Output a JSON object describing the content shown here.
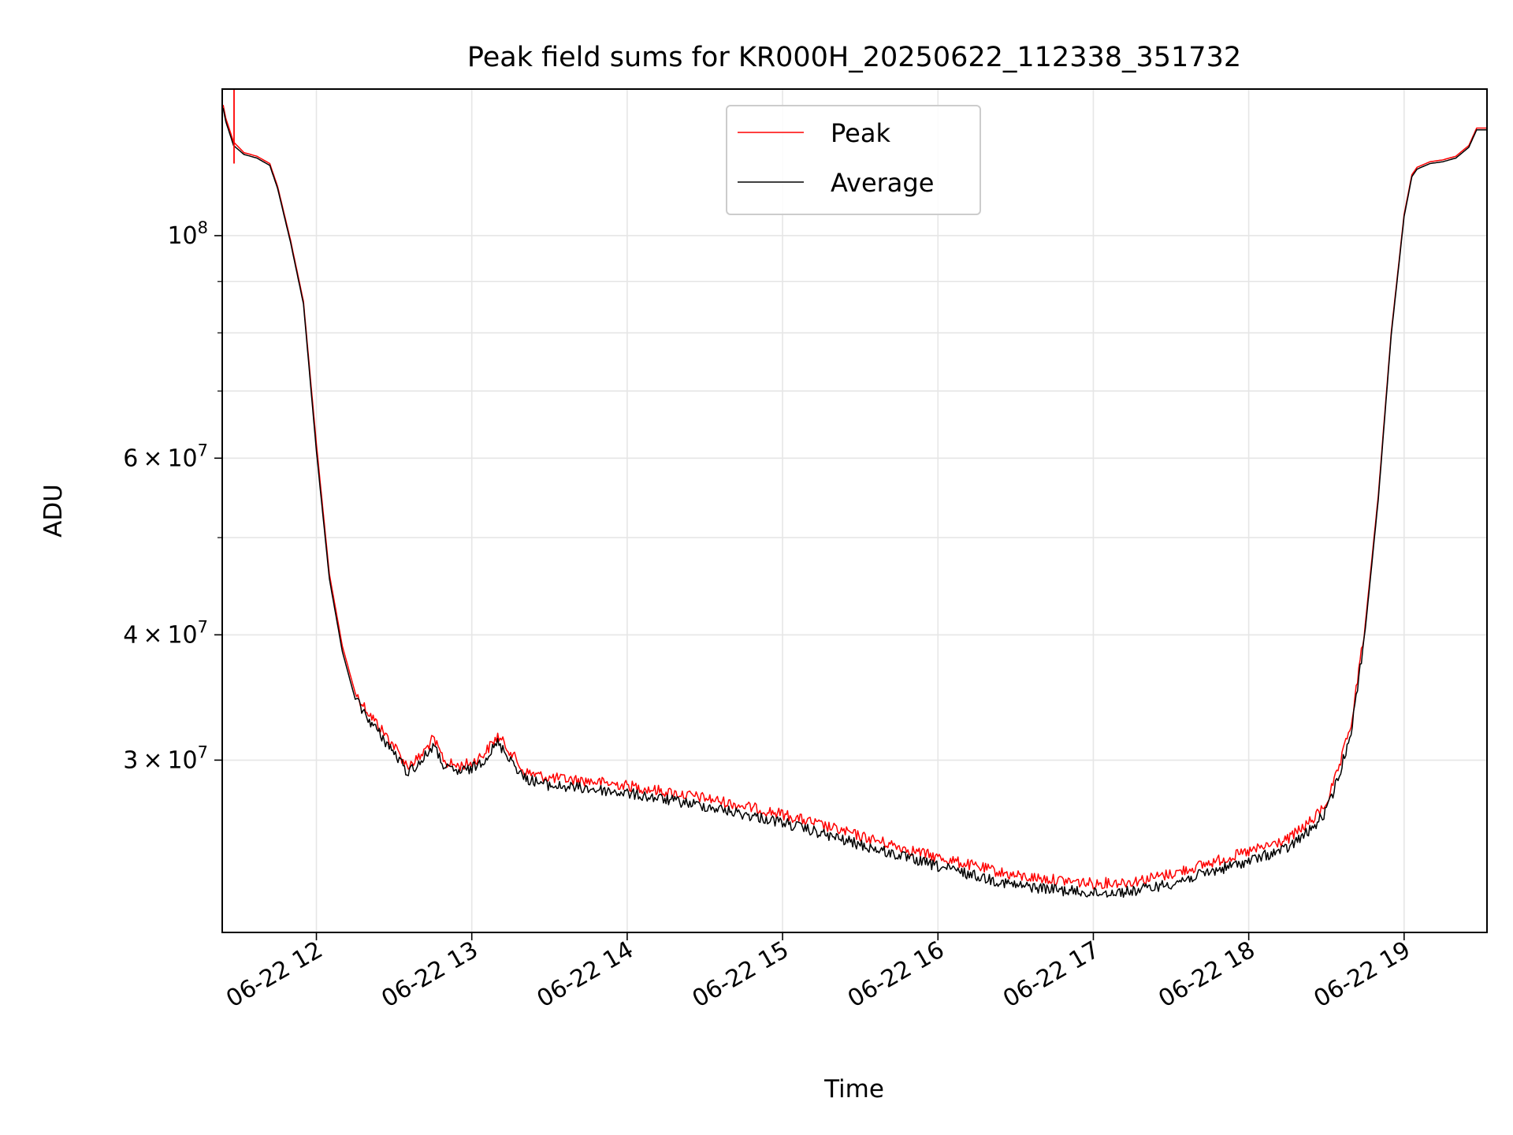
{
  "chart_data": {
    "type": "line",
    "title": "Peak field sums for KR000H_20250622_112338_351732",
    "xlabel": "Time",
    "ylabel": "ADU",
    "y_scale": "log",
    "grid": true,
    "legend_position": "top-center",
    "xlim": [
      "2025-06-22 11:23:38",
      "2025-06-22 19:32"
    ],
    "ylim": [
      20200000,
      140000000
    ],
    "x_ticks": [
      {
        "value": "2025-06-22 12:00",
        "label": "06-22 12"
      },
      {
        "value": "2025-06-22 13:00",
        "label": "06-22 13"
      },
      {
        "value": "2025-06-22 14:00",
        "label": "06-22 14"
      },
      {
        "value": "2025-06-22 15:00",
        "label": "06-22 15"
      },
      {
        "value": "2025-06-22 16:00",
        "label": "06-22 16"
      },
      {
        "value": "2025-06-22 17:00",
        "label": "06-22 17"
      },
      {
        "value": "2025-06-22 18:00",
        "label": "06-22 18"
      },
      {
        "value": "2025-06-22 19:00",
        "label": "06-22 19"
      }
    ],
    "y_major_ticks": [
      {
        "value": 30000000,
        "base": "3",
        "exp": "7"
      },
      {
        "value": 40000000,
        "base": "4",
        "exp": "7"
      },
      {
        "value": 60000000,
        "base": "6",
        "exp": "7"
      },
      {
        "value": 100000000,
        "base": "10",
        "exp": "8"
      }
    ],
    "y_minor_ticks": [
      20000000,
      50000000,
      70000000,
      80000000,
      90000000
    ],
    "series": [
      {
        "name": "Peak",
        "color": "#ff0000",
        "x": [
          "2025-06-22 11:24",
          "2025-06-22 11:25",
          "2025-06-22 11:28",
          "2025-06-22 11:32",
          "2025-06-22 11:37",
          "2025-06-22 11:42",
          "2025-06-22 11:45",
          "2025-06-22 11:50",
          "2025-06-22 11:55",
          "2025-06-22 12:00",
          "2025-06-22 12:05",
          "2025-06-22 12:10",
          "2025-06-22 12:15",
          "2025-06-22 12:20",
          "2025-06-22 12:30",
          "2025-06-22 12:35",
          "2025-06-22 12:40",
          "2025-06-22 12:45",
          "2025-06-22 12:50",
          "2025-06-22 12:55",
          "2025-06-22 13:00",
          "2025-06-22 13:05",
          "2025-06-22 13:10",
          "2025-06-22 13:15",
          "2025-06-22 13:20",
          "2025-06-22 13:30",
          "2025-06-22 13:45",
          "2025-06-22 14:00",
          "2025-06-22 14:30",
          "2025-06-22 15:00",
          "2025-06-22 15:30",
          "2025-06-22 16:00",
          "2025-06-22 16:30",
          "2025-06-22 17:00",
          "2025-06-22 17:15",
          "2025-06-22 17:30",
          "2025-06-22 17:45",
          "2025-06-22 18:00",
          "2025-06-22 18:15",
          "2025-06-22 18:25",
          "2025-06-22 18:30",
          "2025-06-22 18:35",
          "2025-06-22 18:40",
          "2025-06-22 18:45",
          "2025-06-22 18:50",
          "2025-06-22 18:55",
          "2025-06-22 19:00",
          "2025-06-22 19:03",
          "2025-06-22 19:05",
          "2025-06-22 19:10",
          "2025-06-22 19:15",
          "2025-06-22 19:20",
          "2025-06-22 19:25",
          "2025-06-22 19:28",
          "2025-06-22 19:32"
        ],
        "values": [
          135000000,
          131000000,
          124000000,
          121000000,
          120000000,
          118000000,
          112000000,
          99000000,
          86000000,
          62000000,
          46000000,
          39000000,
          35000000,
          33500000,
          31000000,
          29600000,
          30200000,
          31500000,
          29800000,
          29600000,
          29800000,
          30500000,
          31700000,
          30600000,
          29200000,
          28800000,
          28600000,
          28300000,
          27500000,
          26500000,
          25200000,
          24000000,
          23000000,
          22600000,
          22700000,
          23100000,
          23700000,
          24300000,
          25000000,
          26200000,
          27200000,
          29500000,
          33000000,
          41000000,
          55000000,
          80000000,
          105000000,
          115000000,
          117000000,
          118500000,
          119000000,
          120000000,
          123000000,
          128000000,
          128000000
        ]
      },
      {
        "name": "Average",
        "color": "#000000",
        "x": [
          "2025-06-22 11:24",
          "2025-06-22 11:25",
          "2025-06-22 11:28",
          "2025-06-22 11:32",
          "2025-06-22 11:37",
          "2025-06-22 11:42",
          "2025-06-22 11:45",
          "2025-06-22 11:50",
          "2025-06-22 11:55",
          "2025-06-22 12:00",
          "2025-06-22 12:05",
          "2025-06-22 12:10",
          "2025-06-22 12:15",
          "2025-06-22 12:20",
          "2025-06-22 12:30",
          "2025-06-22 12:35",
          "2025-06-22 12:40",
          "2025-06-22 12:45",
          "2025-06-22 12:50",
          "2025-06-22 12:55",
          "2025-06-22 13:00",
          "2025-06-22 13:05",
          "2025-06-22 13:10",
          "2025-06-22 13:15",
          "2025-06-22 13:20",
          "2025-06-22 13:30",
          "2025-06-22 13:45",
          "2025-06-22 14:00",
          "2025-06-22 14:30",
          "2025-06-22 15:00",
          "2025-06-22 15:30",
          "2025-06-22 16:00",
          "2025-06-22 16:30",
          "2025-06-22 17:00",
          "2025-06-22 17:15",
          "2025-06-22 17:30",
          "2025-06-22 17:45",
          "2025-06-22 18:00",
          "2025-06-22 18:15",
          "2025-06-22 18:25",
          "2025-06-22 18:30",
          "2025-06-22 18:35",
          "2025-06-22 18:40",
          "2025-06-22 18:45",
          "2025-06-22 18:50",
          "2025-06-22 18:55",
          "2025-06-22 19:00",
          "2025-06-22 19:03",
          "2025-06-22 19:05",
          "2025-06-22 19:10",
          "2025-06-22 19:15",
          "2025-06-22 19:20",
          "2025-06-22 19:25",
          "2025-06-22 19:28",
          "2025-06-22 19:32"
        ],
        "values": [
          134000000,
          130000000,
          123000000,
          120500000,
          119500000,
          117500000,
          111500000,
          98500000,
          85500000,
          61000000,
          45500000,
          38500000,
          34500000,
          33000000,
          30500000,
          29200000,
          29800000,
          31000000,
          29400000,
          29200000,
          29400000,
          30100000,
          31200000,
          30100000,
          28800000,
          28300000,
          28100000,
          27800000,
          27000000,
          26000000,
          24700000,
          23500000,
          22500000,
          22100000,
          22200000,
          22600000,
          23200000,
          23800000,
          24500000,
          25700000,
          26700000,
          29000000,
          32500000,
          40500000,
          54500000,
          79500000,
          104500000,
          114500000,
          116500000,
          118000000,
          118500000,
          119500000,
          122500000,
          127500000,
          127500000
        ]
      }
    ]
  }
}
